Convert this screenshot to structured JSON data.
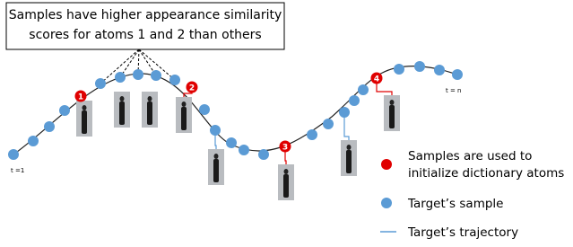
{
  "callout": {
    "lines": [
      "Samples have higher appearance similarity",
      "scores for atoms 1 and 2 than others"
    ]
  },
  "atoms": [
    "1",
    "2",
    "3",
    "4"
  ],
  "time_labels": {
    "start": "t =1",
    "end": "t = n"
  },
  "legend": {
    "atom_lines": [
      "Samples are used to",
      "initialize dictionary atoms"
    ],
    "sample": "Target’s sample",
    "trajectory": "Target’s trajectory"
  }
}
